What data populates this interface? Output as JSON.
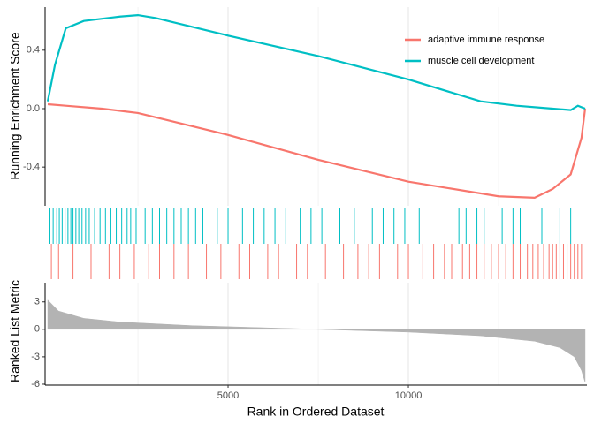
{
  "chart_data": [
    {
      "type": "line",
      "ylabel": "Running Enrichment Score",
      "xlim": [
        -74,
        14950
      ],
      "ylim": [
        -0.665,
        0.695
      ],
      "yticks": [
        {
          "value": 0.4,
          "label": "0.4"
        },
        {
          "value": 0.0,
          "label": "0.0"
        },
        {
          "value": -0.4,
          "label": "-0.4"
        }
      ],
      "legend": "top-right",
      "series": [
        {
          "name": "adaptive immune response",
          "color": "#F8766D",
          "x": [
            0,
            500,
            1500,
            2500,
            5000,
            7500,
            10000,
            12500,
            13500,
            14000,
            14500,
            14800,
            14900
          ],
          "values": [
            0.03,
            0.02,
            0.0,
            -0.03,
            -0.18,
            -0.35,
            -0.5,
            -0.6,
            -0.61,
            -0.55,
            -0.45,
            -0.2,
            0.0
          ]
        },
        {
          "name": "muscle cell development",
          "color": "#00BFC4",
          "x": [
            0,
            200,
            500,
            1000,
            2000,
            2500,
            3000,
            5000,
            7500,
            10000,
            12000,
            13000,
            14000,
            14500,
            14700,
            14900
          ],
          "values": [
            0.05,
            0.3,
            0.55,
            0.6,
            0.63,
            0.64,
            0.62,
            0.5,
            0.36,
            0.2,
            0.05,
            0.02,
            0.0,
            -0.01,
            0.02,
            0.0
          ]
        }
      ]
    },
    {
      "type": "rug",
      "xlim": [
        -74,
        14950
      ],
      "series": [
        {
          "color": "#00BFC4",
          "x": [
            60,
            150,
            250,
            320,
            400,
            480,
            560,
            640,
            700,
            780,
            860,
            950,
            1050,
            1150,
            1300,
            1450,
            1600,
            1750,
            1900,
            2050,
            2200,
            2300,
            2450,
            2700,
            2900,
            3100,
            3300,
            3500,
            3700,
            3900,
            4100,
            4300,
            4700,
            5000,
            5400,
            5700,
            6000,
            6300,
            6600,
            7000,
            7300,
            7600,
            8100,
            8500,
            9000,
            9300,
            9600,
            9900,
            10300,
            11400,
            11600,
            11900,
            12100,
            12600,
            12900,
            13100,
            13700,
            14200,
            14500
          ]
        },
        {
          "color": "#F8766D",
          "x": [
            100,
            300,
            700,
            1200,
            1700,
            2000,
            2400,
            2800,
            3100,
            3500,
            3900,
            4400,
            4800,
            5300,
            5600,
            6100,
            6400,
            6900,
            7200,
            7700,
            8200,
            8600,
            8900,
            9200,
            9700,
            10000,
            10400,
            10700,
            11000,
            11200,
            11500,
            11700,
            11900,
            12100,
            12300,
            12500,
            12700,
            12900,
            13100,
            13300,
            13450,
            13600,
            13750,
            13900,
            14000,
            14100,
            14200,
            14300,
            14400,
            14500,
            14600,
            14700,
            14800
          ]
        }
      ]
    },
    {
      "type": "area",
      "ylabel": "Ranked List Metric",
      "xlabel": "Rank in Ordered Dataset",
      "xlim": [
        -74,
        14950
      ],
      "ylim": [
        -6.1,
        5.1
      ],
      "xticks": [
        5000,
        10000
      ],
      "x_minor_grid": [
        2500,
        7500,
        12500
      ],
      "yticks": [
        3,
        0,
        -3,
        -6
      ],
      "color": "#b3b3b3",
      "x": [
        0,
        300,
        1000,
        2000,
        4000,
        7500,
        10000,
        12000,
        13500,
        14200,
        14600,
        14800,
        14900
      ],
      "values": [
        3.2,
        2,
        1.2,
        0.8,
        0.4,
        0,
        -0.3,
        -0.7,
        -1.3,
        -2,
        -3,
        -4.5,
        -5.8
      ]
    }
  ]
}
